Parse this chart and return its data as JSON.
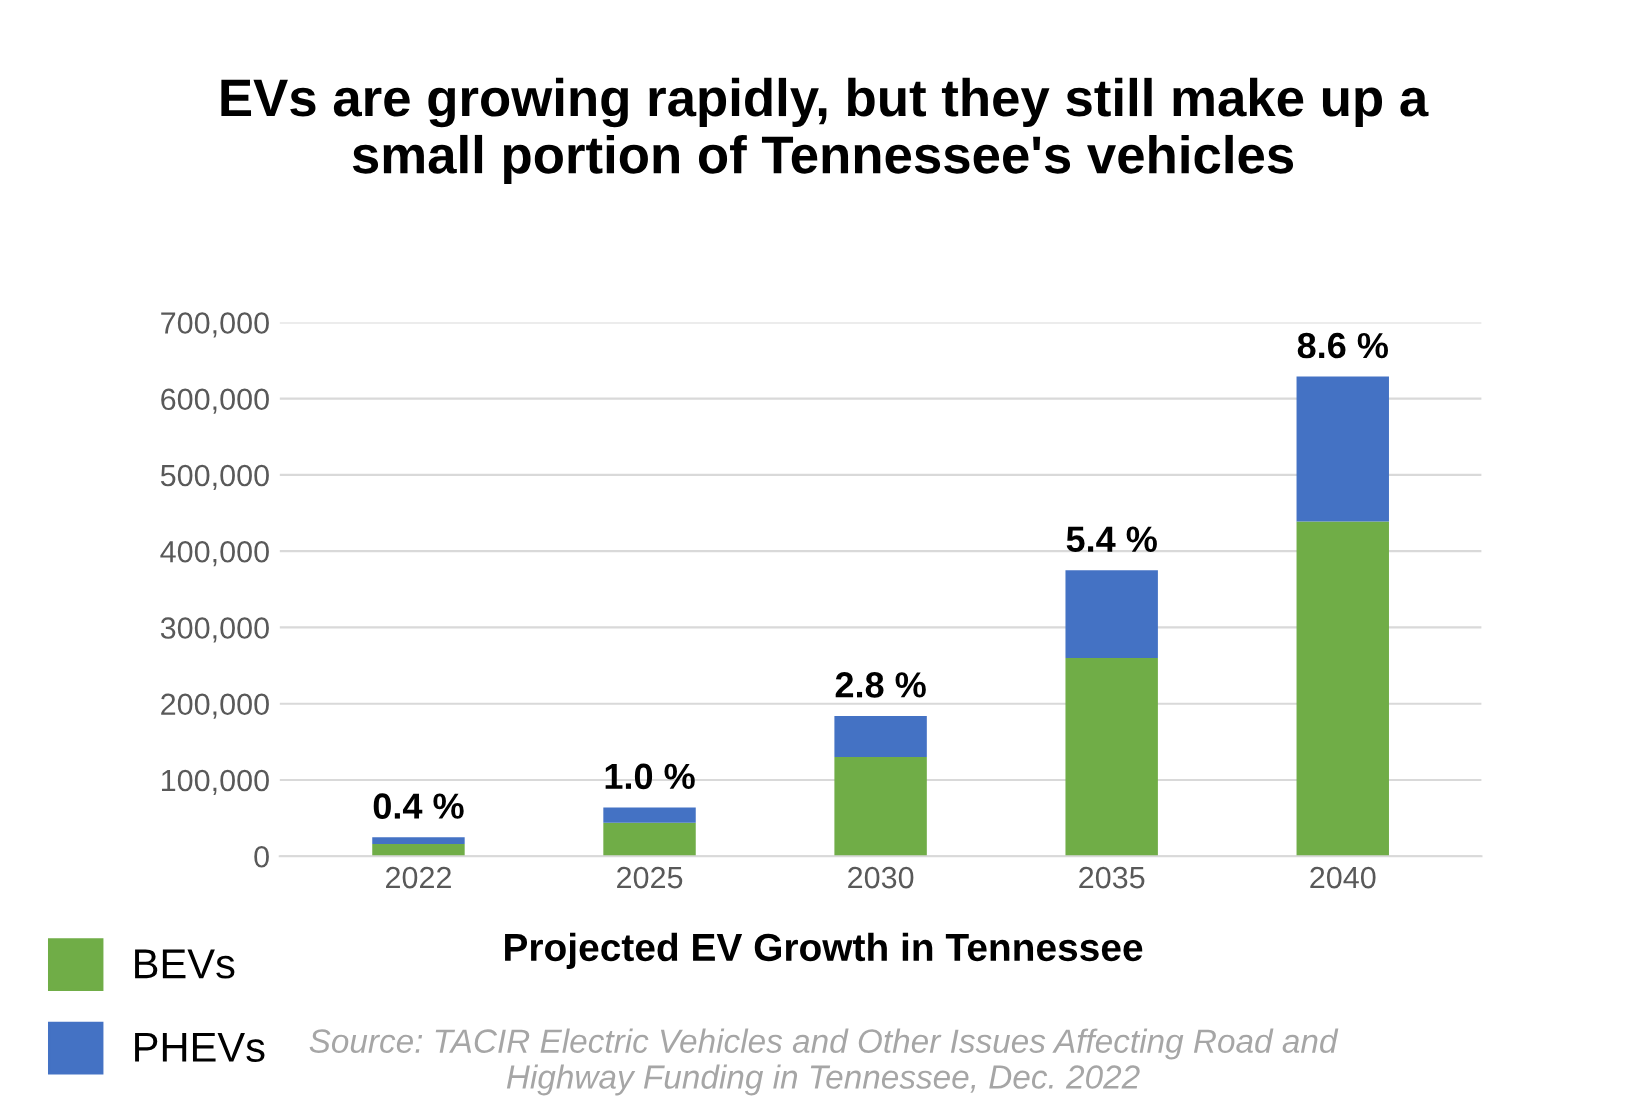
{
  "chart_data": {
    "type": "bar",
    "stacked": true,
    "title": "EVs are growing rapidly, but they still make up a\nsmall portion of Tennessee's vehicles",
    "xlabel": "Projected EV Growth in Tennessee",
    "categories": [
      "2022",
      "2025",
      "2030",
      "2035",
      "2040"
    ],
    "series": [
      {
        "name": "BEVs",
        "color": "#70ad47",
        "values": [
          16000,
          44000,
          130000,
          260000,
          439000
        ]
      },
      {
        "name": "PHEVs",
        "color": "#4472c4",
        "values": [
          9000,
          20000,
          54000,
          115000,
          190000
        ]
      }
    ],
    "ylim": [
      0,
      700000
    ],
    "yticks": [
      {
        "value": 0,
        "label": "0"
      },
      {
        "value": 100000,
        "label": "100,000"
      },
      {
        "value": 200000,
        "label": "200,000"
      },
      {
        "value": 300000,
        "label": "300,000"
      },
      {
        "value": 400000,
        "label": "400,000"
      },
      {
        "value": 500000,
        "label": "500,000"
      },
      {
        "value": 600000,
        "label": "600,000"
      },
      {
        "value": 700000,
        "label": "700,000"
      }
    ],
    "grid": "y",
    "legend": "bottom left",
    "annotations": [
      {
        "text": "0.4 %",
        "x": "2022",
        "y": 25000
      },
      {
        "text": "1.0 %",
        "x": "2025",
        "y": 64000
      },
      {
        "text": "2.8 %",
        "x": "2030",
        "y": 184000
      },
      {
        "text": "5.4 %",
        "x": "2035",
        "y": 375000
      },
      {
        "text": "8.6 %",
        "x": "2040",
        "y": 629000
      },
      "Source: TACIR Electric Vehicles and Other Issues Affecting Road and\nHighway Funding in Tennessee, Dec. 2022"
    ]
  }
}
